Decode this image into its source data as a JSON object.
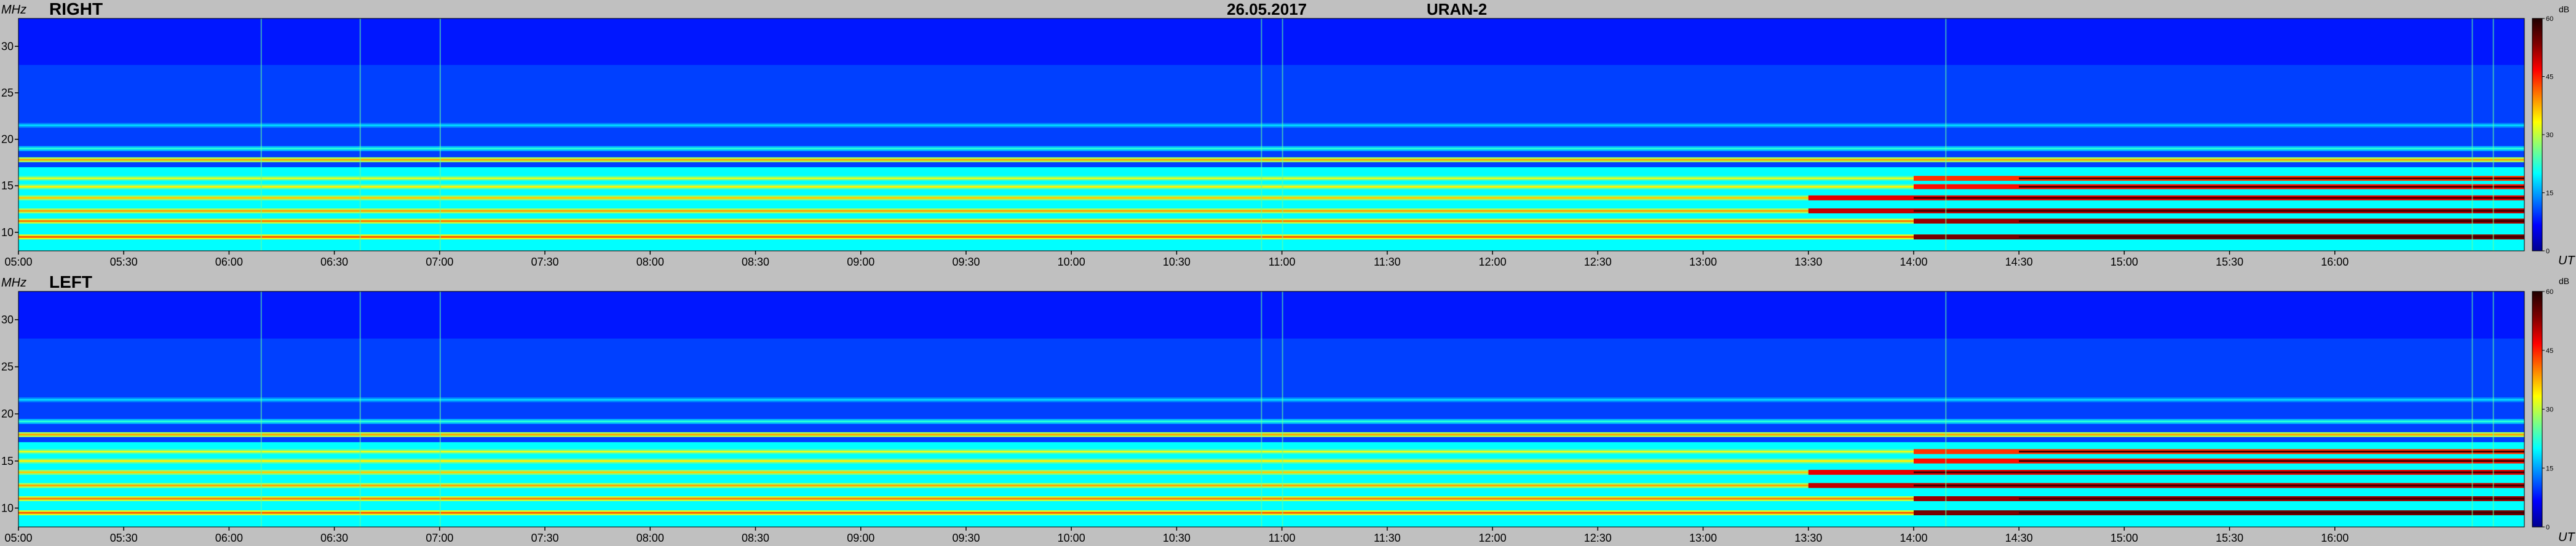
{
  "header": {
    "date": "26.05.2017",
    "instrument": "URAN-2"
  },
  "colors": {
    "background": "#c0c0c0",
    "colormap": [
      "#00008f",
      "#0000ff",
      "#0080ff",
      "#00ffff",
      "#80ff80",
      "#ffff00",
      "#ff8000",
      "#ff0000",
      "#800000",
      "#200000"
    ]
  },
  "chart_data": [
    {
      "type": "heatmap",
      "title": "RIGHT",
      "ylabel": "MHz",
      "xlabel": "UT",
      "x_ticks": [
        "05:00",
        "05:30",
        "06:00",
        "06:30",
        "07:00",
        "07:30",
        "08:00",
        "08:30",
        "09:00",
        "09:30",
        "10:00",
        "10:30",
        "11:00",
        "11:30",
        "12:00",
        "12:30",
        "13:00",
        "13:30",
        "14:00",
        "14:30",
        "15:00",
        "15:30",
        "16:00"
      ],
      "y_ticks": [
        10,
        15,
        20,
        25,
        30
      ],
      "ylim": [
        8,
        33
      ],
      "xlim_hours": [
        5.0,
        16.9
      ],
      "colorbar": {
        "label": "dB",
        "ticks": [
          0,
          15,
          30,
          45,
          60
        ],
        "range": [
          0,
          60
        ]
      },
      "bands_mhz": [
        {
          "freq": 9.5,
          "level_db": 42,
          "trend": "strong after 14:00"
        },
        {
          "freq": 11.2,
          "level_db": 40,
          "trend": "strong after 14:00"
        },
        {
          "freq": 12.3,
          "level_db": 38,
          "trend": "strong after 13:30"
        },
        {
          "freq": 13.7,
          "level_db": 36,
          "trend": "strong after 13:30"
        },
        {
          "freq": 14.9,
          "level_db": 34,
          "trend": "strong after 14:00"
        },
        {
          "freq": 15.8,
          "level_db": 32,
          "trend": "strong after 14:00"
        },
        {
          "freq": 17.8,
          "level_db": 38,
          "trend": "steady"
        },
        {
          "freq": 19.0,
          "level_db": 22,
          "trend": "weak"
        },
        {
          "freq": 21.5,
          "level_db": 18,
          "trend": "weak early"
        }
      ],
      "background_db": 10
    },
    {
      "type": "heatmap",
      "title": "LEFT",
      "ylabel": "MHz",
      "xlabel": "UT",
      "x_ticks": [
        "05:00",
        "05:30",
        "06:00",
        "06:30",
        "07:00",
        "07:30",
        "08:00",
        "08:30",
        "09:00",
        "09:30",
        "10:00",
        "10:30",
        "11:00",
        "11:30",
        "12:00",
        "12:30",
        "13:00",
        "13:30",
        "14:00",
        "14:30",
        "15:00",
        "15:30",
        "16:00"
      ],
      "y_ticks": [
        10,
        15,
        20,
        25,
        30
      ],
      "ylim": [
        8,
        33
      ],
      "xlim_hours": [
        5.0,
        16.9
      ],
      "colorbar": {
        "label": "dB",
        "ticks": [
          0,
          15,
          30,
          45,
          60
        ],
        "range": [
          0,
          60
        ]
      },
      "bands_mhz": [
        {
          "freq": 9.5,
          "level_db": 42,
          "trend": "strong after 14:00"
        },
        {
          "freq": 11.0,
          "level_db": 40,
          "trend": "strong after 14:00"
        },
        {
          "freq": 12.4,
          "level_db": 38,
          "trend": "strong after 13:30"
        },
        {
          "freq": 13.8,
          "level_db": 36,
          "trend": "strong after 13:30"
        },
        {
          "freq": 15.0,
          "level_db": 34,
          "trend": "strong after 14:00"
        },
        {
          "freq": 16.0,
          "level_db": 32,
          "trend": "strong after 14:00"
        },
        {
          "freq": 17.8,
          "level_db": 38,
          "trend": "steady"
        },
        {
          "freq": 19.2,
          "level_db": 22,
          "trend": "weak"
        },
        {
          "freq": 21.5,
          "level_db": 18,
          "trend": "weak early"
        }
      ],
      "background_db": 10
    }
  ]
}
